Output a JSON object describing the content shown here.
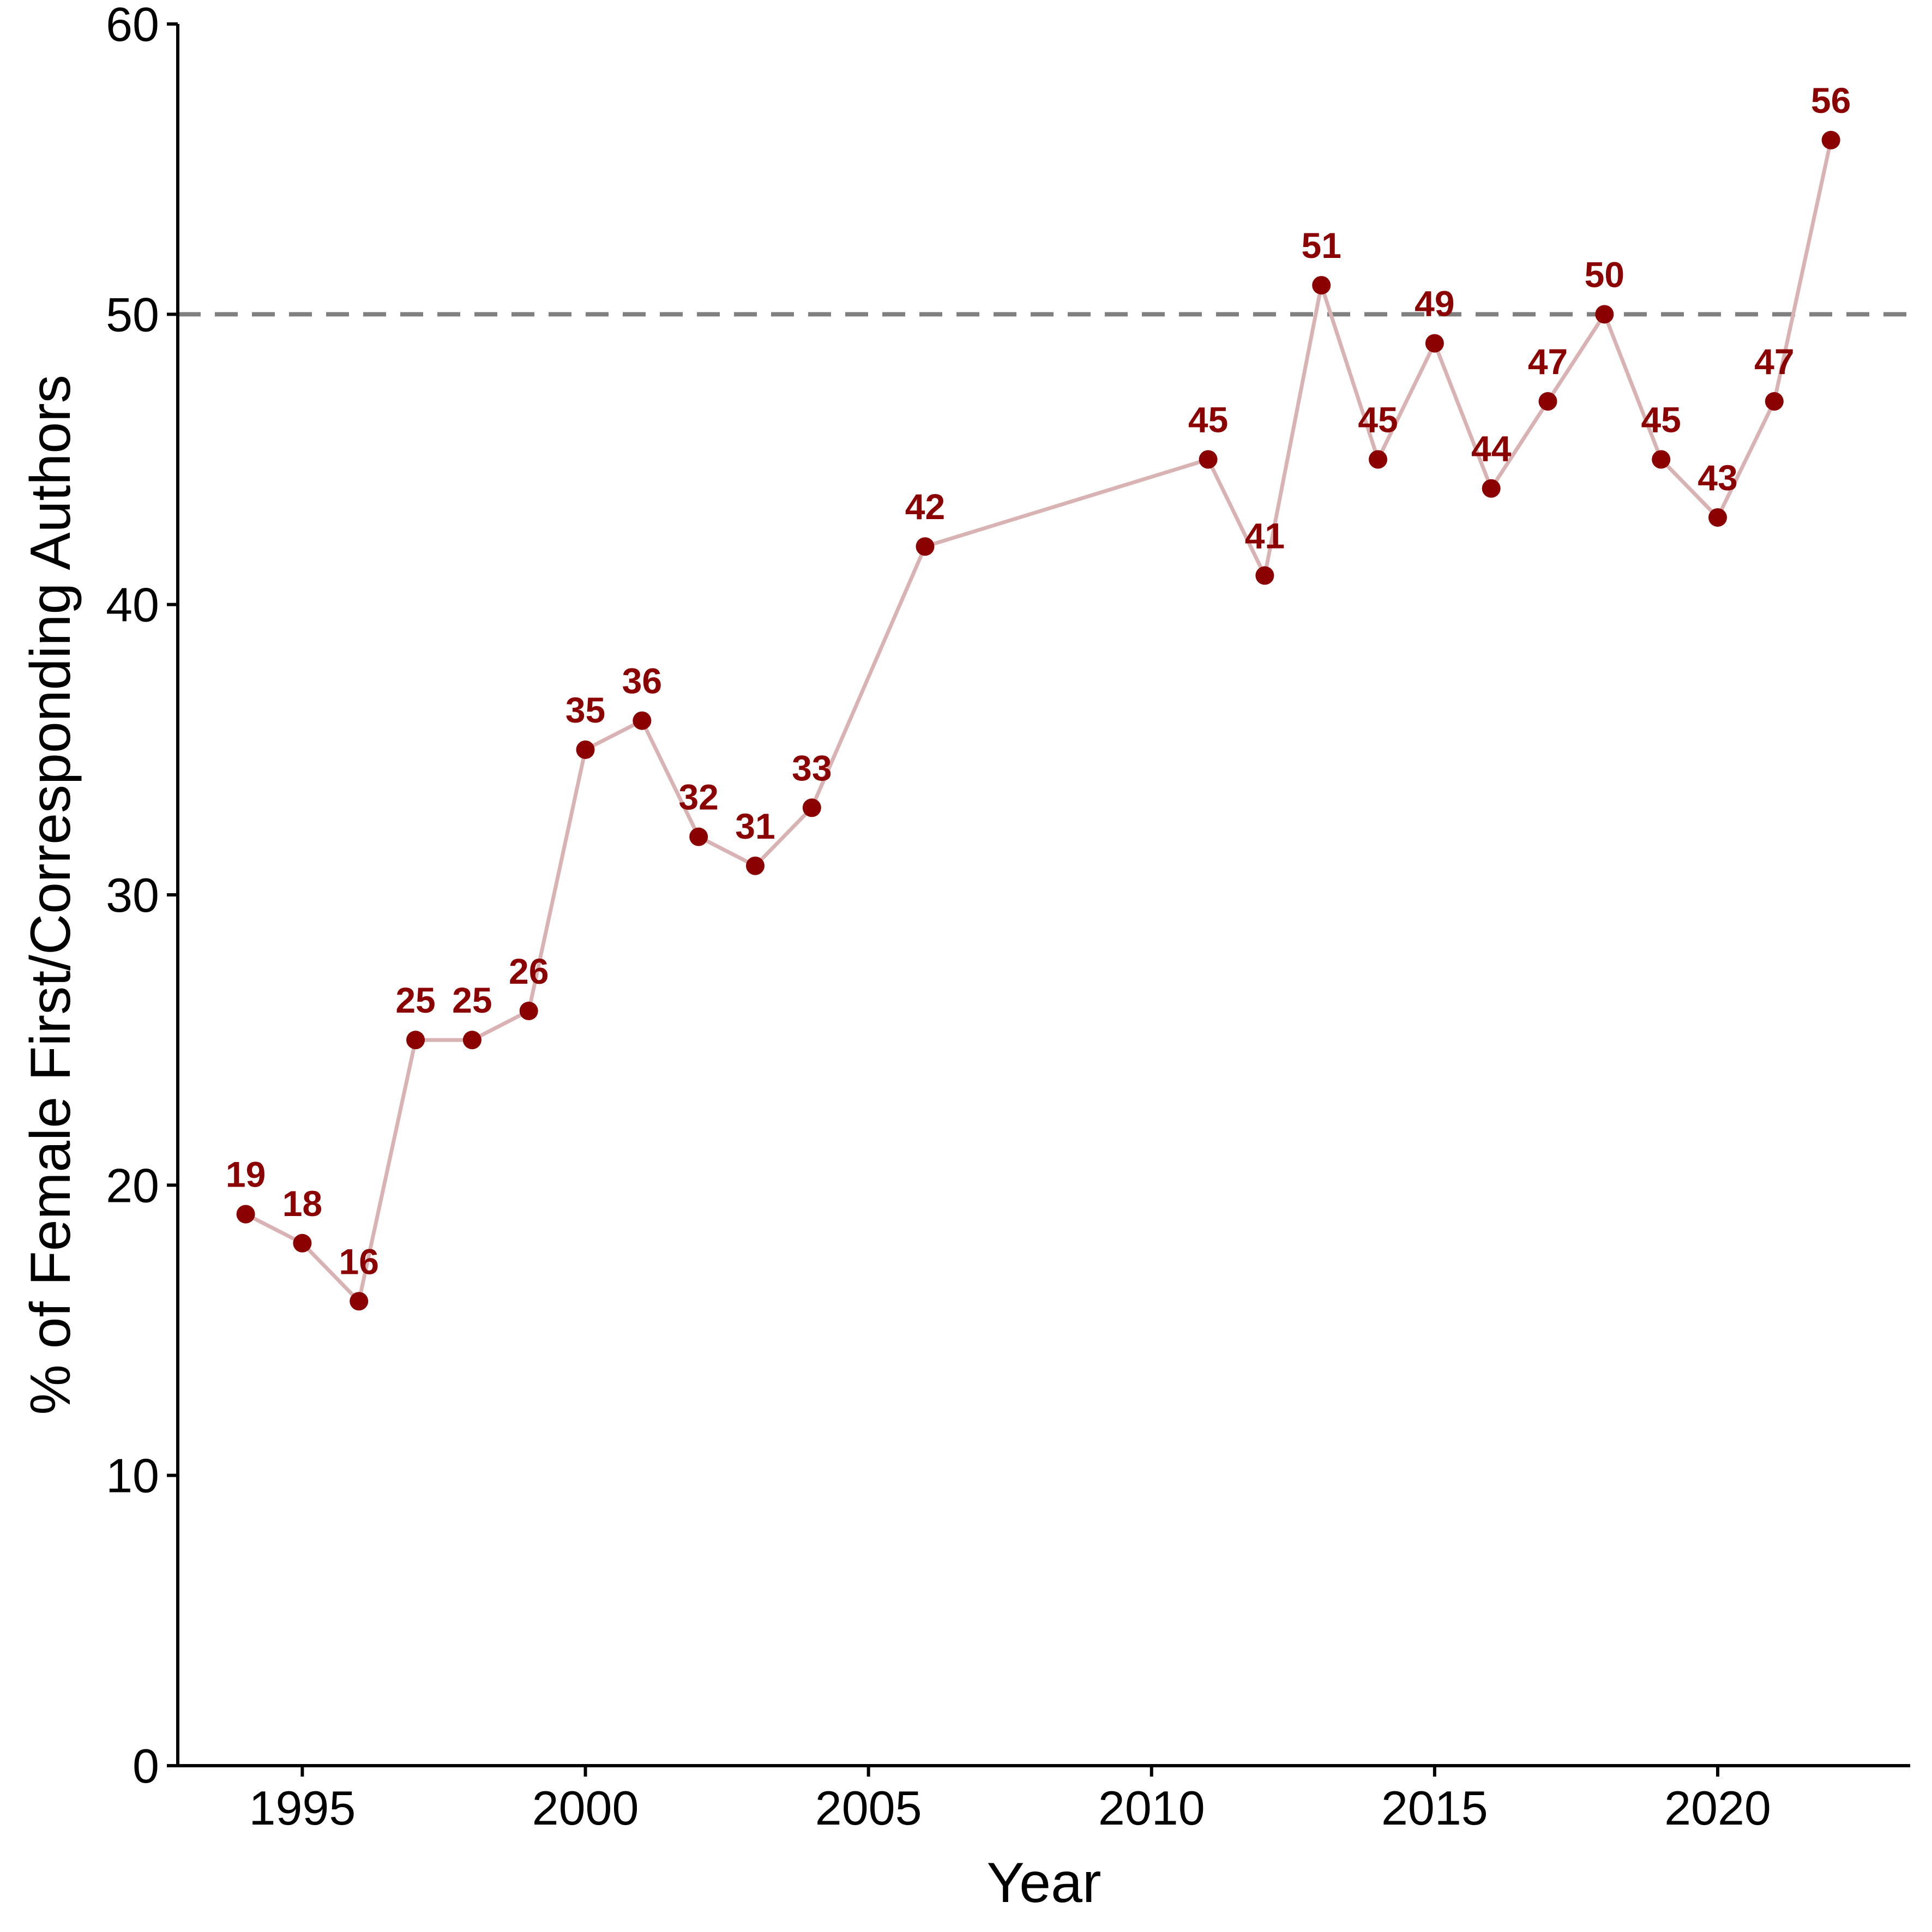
{
  "chart_data": {
    "type": "line",
    "title": "",
    "xlabel": "Year",
    "ylabel": "% of Female First/Corresponding Authors",
    "xlim": [
      1992.8,
      2023.4
    ],
    "ylim": [
      0,
      60
    ],
    "x_ticks": [
      1995,
      2000,
      2005,
      2010,
      2015,
      2020
    ],
    "y_ticks": [
      0,
      10,
      20,
      30,
      40,
      50,
      60
    ],
    "reference_line": {
      "y": 50,
      "style": "dashed"
    },
    "grid": false,
    "legend": "none",
    "series": [
      {
        "x": [
          1994,
          1995,
          1996,
          1997,
          1998,
          1999,
          2000,
          2001,
          2002,
          2003,
          2004,
          2006,
          2011,
          2012,
          2013,
          2014,
          2015,
          2016,
          2017,
          2018,
          2019,
          2020,
          2021,
          2022
        ],
        "values": [
          19,
          18,
          16,
          25,
          25,
          26,
          35,
          36,
          32,
          31,
          33,
          42,
          45,
          41,
          51,
          45,
          49,
          44,
          47,
          50,
          45,
          43,
          47,
          56
        ],
        "labels": [
          "19",
          "18",
          "16",
          "25",
          "25",
          "26",
          "35",
          "36",
          "32",
          "31",
          "33",
          "42",
          "45",
          "41",
          "51",
          "45",
          "49",
          "44",
          "47",
          "50",
          "45",
          "43",
          "47",
          "56"
        ]
      }
    ],
    "colors": {
      "point": "#8B0000",
      "line": "#D9B3B3",
      "label": "#8B0000",
      "reference": "#808080",
      "axis": "#000000"
    }
  }
}
